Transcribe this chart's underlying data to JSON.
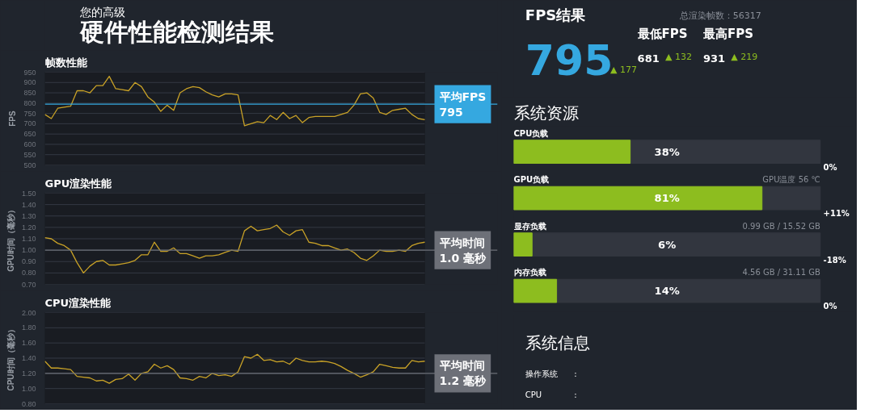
{
  "chart_data": [
    {
      "type": "other",
      "title": "您的高级",
      "subtitle": "硬件性能检测结果"
    },
    {
      "type": "line",
      "title": "帧数性能",
      "ylabel": "FPS",
      "categories": [
        null,
        null,
        null,
        null,
        null,
        null,
        null,
        null,
        null,
        null,
        null,
        null,
        null,
        null,
        null,
        null,
        null,
        null,
        null,
        null,
        null,
        null,
        null,
        null,
        null,
        null,
        null,
        null,
        null,
        null,
        null,
        null,
        null,
        null,
        null,
        null,
        null,
        null,
        null,
        null,
        null,
        null,
        null,
        null,
        null,
        null,
        null,
        null,
        null,
        null,
        null,
        null,
        null,
        null,
        null,
        null,
        null,
        null,
        null,
        null
      ],
      "series": [
        {
          "color": "#c9a227",
          "values": [
            745,
            725,
            775,
            780,
            785,
            860,
            860,
            850,
            885,
            885,
            930,
            870,
            865,
            860,
            900,
            880,
            830,
            805,
            760,
            790,
            765,
            850,
            870,
            880,
            875,
            855,
            840,
            830,
            845,
            845,
            840,
            690,
            700,
            710,
            705,
            740,
            720,
            755,
            725,
            740,
            705,
            730,
            735,
            735,
            735,
            735,
            745,
            755,
            790,
            845,
            850,
            825,
            755,
            745,
            765,
            770,
            775,
            745,
            725,
            720
          ]
        }
      ],
      "ylim": [
        500,
        950
      ],
      "yticks": [
        500,
        550,
        600,
        650,
        700,
        750,
        800,
        850,
        900,
        950
      ],
      "grid": "y",
      "tick_labels": "y",
      "ref_lines": [
        {
          "axis": "y",
          "value": 795,
          "label": "平均FPS\n795",
          "color": "#35a8e0"
        }
      ]
    },
    {
      "type": "line",
      "title": "GPU渲染性能",
      "ylabel": "GPU时间（毫秒）",
      "categories": [
        null,
        null,
        null,
        null,
        null,
        null,
        null,
        null,
        null,
        null,
        null,
        null,
        null,
        null,
        null,
        null,
        null,
        null,
        null,
        null,
        null,
        null,
        null,
        null,
        null,
        null,
        null,
        null,
        null,
        null,
        null,
        null,
        null,
        null,
        null,
        null,
        null,
        null,
        null,
        null,
        null,
        null,
        null,
        null,
        null,
        null,
        null,
        null,
        null,
        null,
        null,
        null,
        null,
        null,
        null,
        null,
        null,
        null,
        null,
        null
      ],
      "series": [
        {
          "color": "#c9a227",
          "values": [
            1.11,
            1.1,
            1.06,
            1.04,
            1.0,
            0.89,
            0.8,
            0.86,
            0.9,
            0.91,
            0.87,
            0.87,
            0.88,
            0.89,
            0.91,
            0.96,
            0.96,
            1.07,
            0.99,
            0.99,
            1.02,
            0.97,
            0.97,
            0.95,
            0.93,
            0.95,
            0.95,
            0.96,
            0.98,
            1.0,
            0.99,
            1.17,
            1.21,
            1.17,
            1.18,
            1.19,
            1.22,
            1.16,
            1.13,
            1.17,
            1.18,
            1.07,
            1.06,
            1.04,
            1.04,
            1.02,
            1.0,
            1.01,
            0.98,
            0.93,
            0.91,
            0.95,
            1.0,
            0.99,
            0.99,
            1.0,
            0.99,
            1.04,
            1.06,
            1.07
          ]
        }
      ],
      "ylim": [
        0.7,
        1.5
      ],
      "yticks": [
        {
          "value": 0.7,
          "label": "0.70"
        },
        {
          "value": 0.8,
          "label": "0.80"
        },
        {
          "value": 0.9,
          "label": "0.90"
        },
        {
          "value": 1.0,
          "label": "1.00"
        },
        {
          "value": 1.1,
          "label": "1.10"
        },
        {
          "value": 1.2,
          "label": "1.20"
        },
        {
          "value": 1.3,
          "label": "1.30"
        },
        {
          "value": 1.4,
          "label": "1.40"
        },
        {
          "value": 1.5,
          "label": "1.50"
        }
      ],
      "grid": "y",
      "tick_labels": "y",
      "ref_lines": [
        {
          "axis": "y",
          "value": 1.0,
          "label": "平均时间\n1.0 毫秒",
          "color": "#6d7078"
        }
      ]
    },
    {
      "type": "line",
      "title": "CPU渲染性能",
      "ylabel": "CPU时间（毫秒）",
      "categories": [
        null,
        null,
        null,
        null,
        null,
        null,
        null,
        null,
        null,
        null,
        null,
        null,
        null,
        null,
        null,
        null,
        null,
        null,
        null,
        null,
        null,
        null,
        null,
        null,
        null,
        null,
        null,
        null,
        null,
        null,
        null,
        null,
        null,
        null,
        null,
        null,
        null,
        null,
        null,
        null,
        null,
        null,
        null,
        null,
        null,
        null,
        null,
        null,
        null,
        null,
        null,
        null,
        null,
        null,
        null,
        null,
        null,
        null,
        null,
        null
      ],
      "series": [
        {
          "color": "#c9a227",
          "values": [
            1.36,
            1.27,
            1.27,
            1.26,
            1.25,
            1.16,
            1.15,
            1.14,
            1.1,
            1.11,
            1.07,
            1.12,
            1.13,
            1.19,
            1.11,
            1.2,
            1.22,
            1.32,
            1.27,
            1.3,
            1.25,
            1.14,
            1.13,
            1.11,
            1.16,
            1.14,
            1.2,
            1.17,
            1.18,
            1.16,
            1.22,
            1.42,
            1.4,
            1.45,
            1.37,
            1.38,
            1.35,
            1.36,
            1.32,
            1.4,
            1.37,
            1.35,
            1.35,
            1.36,
            1.35,
            1.33,
            1.29,
            1.24,
            1.2,
            1.15,
            1.18,
            1.22,
            1.32,
            1.3,
            1.28,
            1.27,
            1.27,
            1.37,
            1.35,
            1.36
          ]
        }
      ],
      "ylim": [
        0.8,
        2.0
      ],
      "yticks": [
        {
          "value": 0.8,
          "label": "0.80"
        },
        {
          "value": 1.0,
          "label": "1.00"
        },
        {
          "value": 1.2,
          "label": "1.20"
        },
        {
          "value": 1.4,
          "label": "1.40"
        },
        {
          "value": 1.6,
          "label": "1.60"
        },
        {
          "value": 1.8,
          "label": "1.80"
        },
        {
          "value": 2.0,
          "label": "2.00"
        }
      ],
      "grid": "y",
      "tick_labels": "y",
      "ref_lines": [
        {
          "axis": "y",
          "value": 1.2,
          "label": "平均时间\n1.2 毫秒",
          "color": "#6d7078"
        }
      ]
    },
    {
      "type": "other",
      "title": "FPS结果",
      "annotations": [
        "总渲染帧数：56317",
        "795",
        "▲ 177",
        "最低FPS",
        "681",
        "▲ 132",
        "最高FPS",
        "931",
        "▲ 219"
      ]
    },
    {
      "type": "bar",
      "orientation": "horizontal",
      "title": "系统资源",
      "categories": [
        "CPU负载",
        "GPU负载",
        "显存负载",
        "内存负载"
      ],
      "values": [
        38,
        81,
        6,
        14
      ],
      "color": "#8dbd1f",
      "xlim": [
        0,
        100
      ],
      "tick_labels": false,
      "value_labels": [
        "38%",
        "81%",
        "6%",
        "14%"
      ],
      "annotations": [
        "GPU温度 56 ℃",
        "0.99 GB / 15.52 GB",
        "4.56 GB / 31.11 GB",
        "0%",
        "+11%",
        "-18%",
        "0%"
      ]
    },
    {
      "type": "other",
      "title": "系统信息",
      "annotations": [
        "操作系统",
        ":",
        "CPU",
        ":"
      ]
    }
  ]
}
